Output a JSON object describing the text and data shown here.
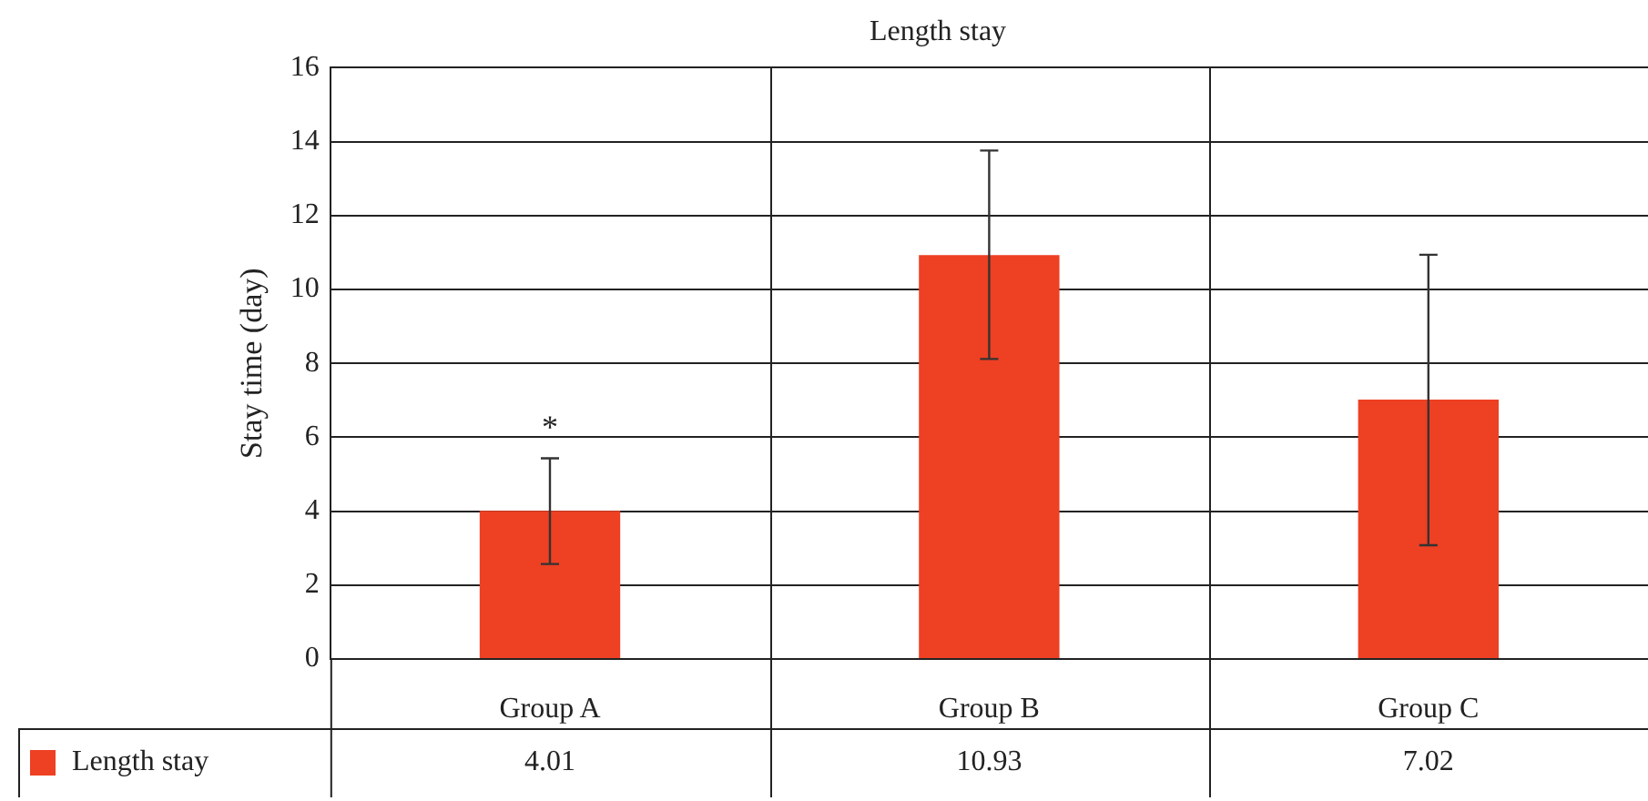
{
  "chart_data": {
    "type": "bar",
    "title": "Length stay",
    "ylabel": "Stay time (day)",
    "categories": [
      "Group A",
      "Group B",
      "Group C"
    ],
    "series": [
      {
        "name": "Length stay",
        "color": "#ee4023",
        "values": [
          4.01,
          10.93,
          7.02
        ],
        "errors": [
          [
            2.57,
            5.43
          ],
          [
            8.12,
            13.76
          ],
          [
            3.08,
            10.94
          ]
        ]
      }
    ],
    "ylim": [
      0,
      16
    ],
    "yticks": [
      0,
      2,
      4,
      6,
      8,
      10,
      12,
      14,
      16
    ],
    "grid": true,
    "legend": "bottom left",
    "data_labels": true,
    "annotations": [
      "*"
    ]
  }
}
